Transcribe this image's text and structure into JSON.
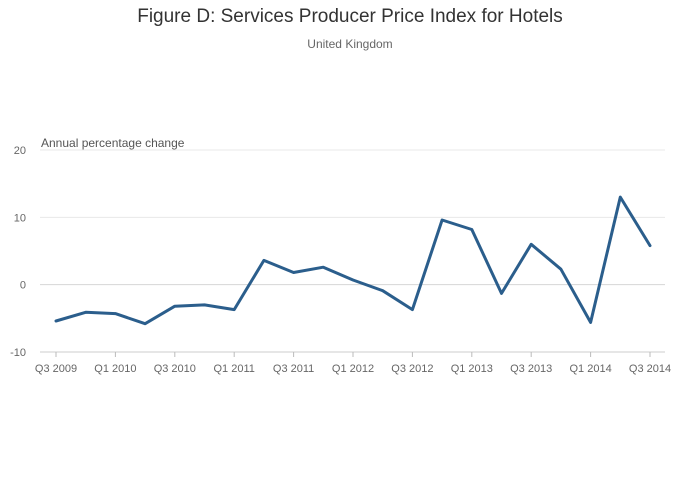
{
  "header": {
    "title": "Figure D: Services Producer Price Index for Hotels",
    "subtitle": "United Kingdom"
  },
  "chart_data": {
    "type": "line",
    "title": "Figure D: Services Producer Price Index for Hotels",
    "subtitle": "United Kingdom",
    "xlabel": "",
    "ylabel": "Annual percentage change",
    "ylim": [
      -10,
      20
    ],
    "yticks": [
      -10,
      0,
      10,
      20
    ],
    "grid": true,
    "line_color": "#2b5e8c",
    "categories": [
      "Q3 2009",
      "Q4 2009",
      "Q1 2010",
      "Q2 2010",
      "Q3 2010",
      "Q4 2010",
      "Q1 2011",
      "Q2 2011",
      "Q3 2011",
      "Q4 2011",
      "Q1 2012",
      "Q2 2012",
      "Q3 2012",
      "Q4 2012",
      "Q1 2013",
      "Q2 2013",
      "Q3 2013",
      "Q4 2013",
      "Q1 2014",
      "Q2 2014",
      "Q3 2014"
    ],
    "tick_labels": [
      "Q3 2009",
      "Q1 2010",
      "Q3 2010",
      "Q1 2011",
      "Q3 2011",
      "Q1 2012",
      "Q3 2012",
      "Q1 2013",
      "Q3 2013",
      "Q1 2014",
      "Q3 2014"
    ],
    "series": [
      {
        "values": [
          -5.4,
          -4.1,
          -4.3,
          -5.8,
          -3.2,
          -3.0,
          -3.7,
          3.6,
          1.8,
          2.6,
          0.7,
          -0.9,
          -3.7,
          9.6,
          8.2,
          -1.3,
          6.0,
          2.3,
          -5.6,
          13.0,
          5.8
        ]
      }
    ]
  }
}
